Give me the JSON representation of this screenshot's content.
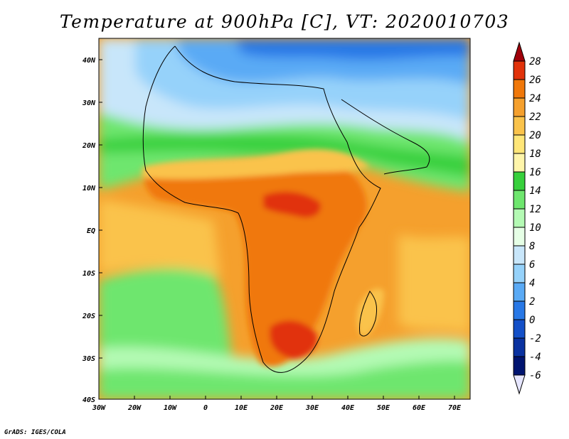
{
  "title": "Temperature at 900hPa [C], VT: 2020010703",
  "credit": "GrADS: IGES/COLA",
  "map": {
    "lon_ticks": [
      "30W",
      "20W",
      "10W",
      "0",
      "10E",
      "20E",
      "30E",
      "40E",
      "50E",
      "60E",
      "70E"
    ],
    "lat_ticks": [
      "40N",
      "30N",
      "20N",
      "10N",
      "EQ",
      "10S",
      "20S",
      "30S",
      "40S"
    ]
  },
  "colorbar": {
    "labels": [
      "28",
      "26",
      "24",
      "22",
      "20",
      "18",
      "16",
      "14",
      "12",
      "10",
      "8",
      "6",
      "4",
      "2",
      "0",
      "-2",
      "-4",
      "-6"
    ],
    "colors": [
      "#a0000a",
      "#e1320a",
      "#f0780a",
      "#f5a02d",
      "#fac34b",
      "#ffe678",
      "#fff5aa",
      "#37d03c",
      "#6ee66e",
      "#b4fab4",
      "#e6ffe6",
      "#c8e6fa",
      "#96d2fa",
      "#5aaaf5",
      "#2878e6",
      "#1450c8",
      "#0a32a0",
      "#001470",
      "#e6e6ff"
    ]
  },
  "colors": {
    "ocean_warm": "#fac34b",
    "land_hot": "#f0780a",
    "land_very_hot": "#e1320a",
    "cool_green": "#6ee66e",
    "north_blue": "#96d2fa",
    "cold_blue": "#2878e6"
  }
}
